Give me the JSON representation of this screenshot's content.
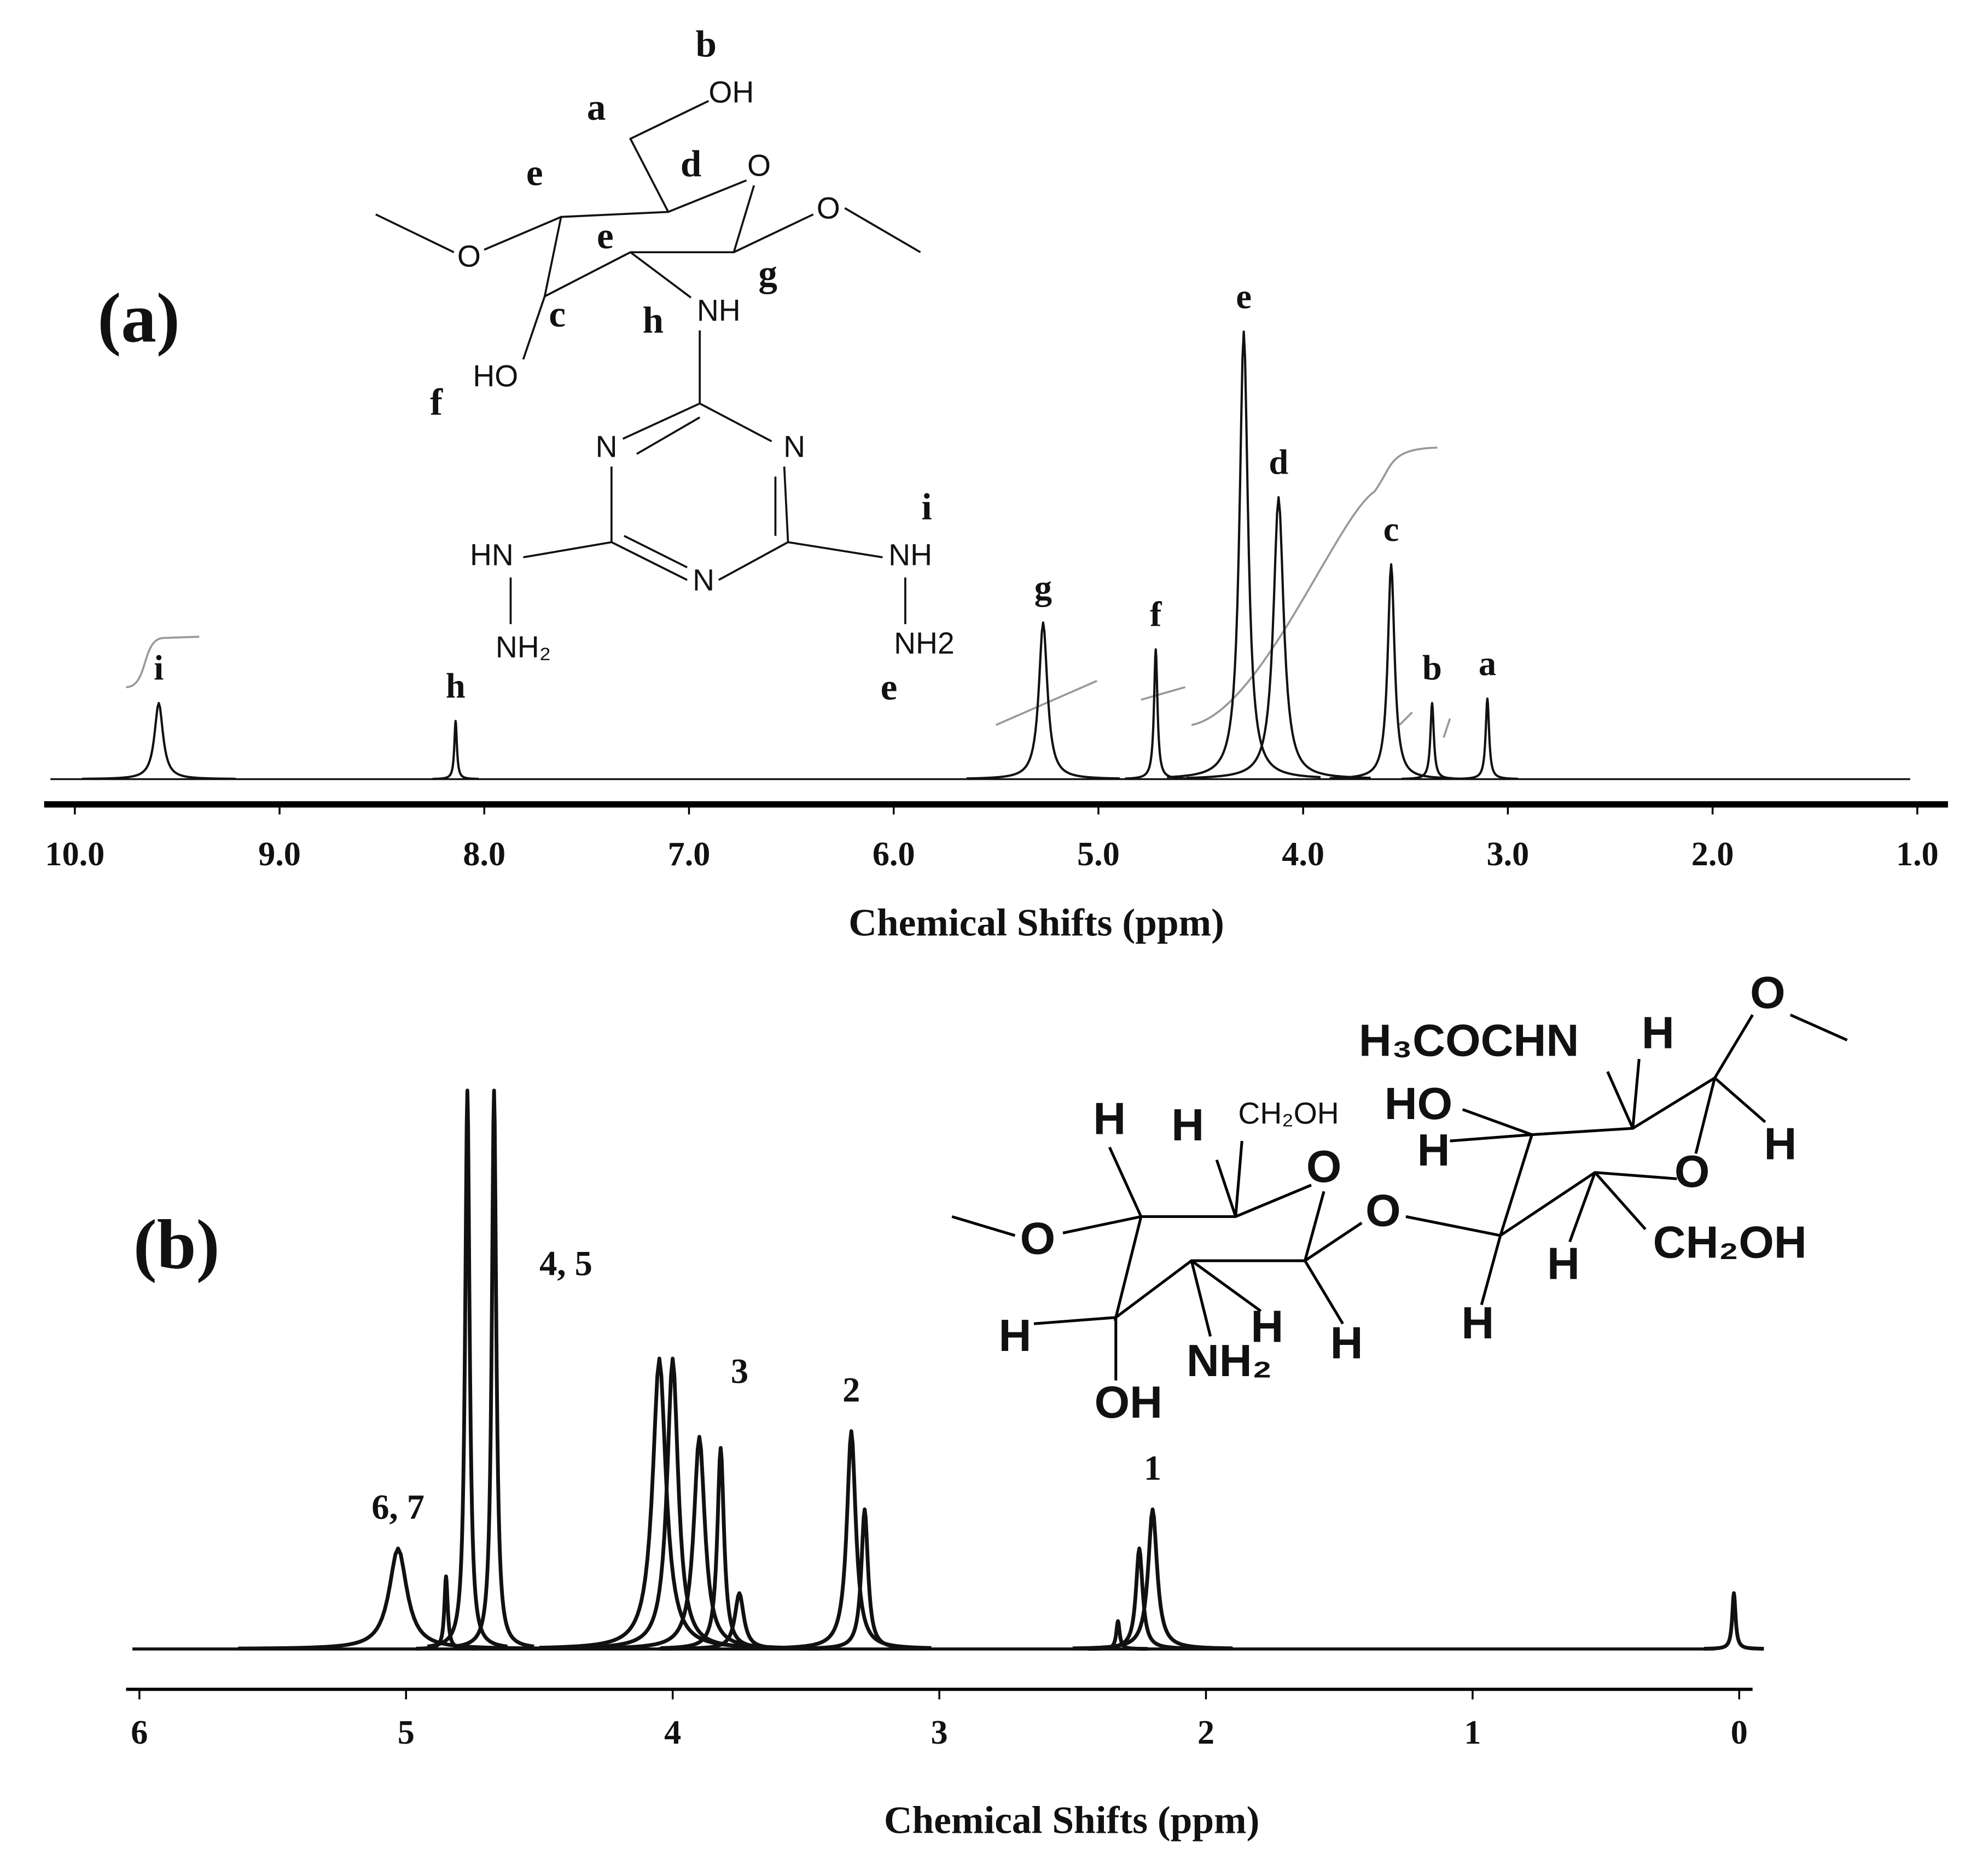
{
  "chart_data": [
    {
      "type": "line",
      "panel_label": "(a)",
      "x_label": "Chemical Shifts (ppm)",
      "xlim": [
        10.15,
        0.85
      ],
      "xticks": [
        {
          "value": 10,
          "label": "10.0"
        },
        {
          "value": 9,
          "label": "9.0"
        },
        {
          "value": 8,
          "label": "8.0"
        },
        {
          "value": 7,
          "label": "7.0"
        },
        {
          "value": 6,
          "label": "6.0"
        },
        {
          "value": 5,
          "label": "5.0"
        },
        {
          "value": 4,
          "label": "4.0"
        },
        {
          "value": 3,
          "label": "3.0"
        },
        {
          "value": 2,
          "label": "2.0"
        },
        {
          "value": 1,
          "label": "1.0"
        }
      ],
      "color": "#111111",
      "x": [
        9.59,
        8.14,
        5.27,
        4.72,
        4.29,
        4.12,
        3.57,
        3.37,
        3.1
      ],
      "values": [
        17,
        13,
        35,
        29,
        100,
        63,
        48,
        17,
        18
      ],
      "linewidths": [
        0.05,
        0.015,
        0.05,
        0.02,
        0.05,
        0.06,
        0.04,
        0.02,
        0.02
      ],
      "labels": [
        "i",
        "h",
        "g",
        "f",
        "e",
        "d",
        "c",
        "b",
        "a"
      ],
      "structure": [
        "b",
        "OH",
        "a",
        "d",
        "O",
        "e",
        "O",
        "O",
        "e",
        "g",
        "c",
        "NH",
        "h",
        "HO",
        "f",
        "N",
        "N",
        "i",
        "HN",
        "NH",
        "N",
        "NH₂",
        "NH2",
        "e"
      ]
    },
    {
      "type": "line",
      "panel_label": "(b)",
      "x_label": "Chemical Shifts (ppm)",
      "xlim": [
        6.05,
        -0.05
      ],
      "xticks": [
        6,
        5,
        4,
        3,
        2,
        1,
        0
      ],
      "color": "#111111",
      "x": [
        5.03,
        4.85,
        4.77,
        4.67,
        4.05,
        4.0,
        3.9,
        3.82,
        3.75,
        3.33,
        3.28,
        2.33,
        2.25,
        2.2,
        0.02
      ],
      "values": [
        18,
        13,
        100,
        100,
        52,
        52,
        38,
        36,
        10,
        39,
        25,
        5,
        18,
        25,
        10
      ],
      "linewidths": [
        0.08,
        0.015,
        0.02,
        0.02,
        0.06,
        0.05,
        0.05,
        0.03,
        0.04,
        0.04,
        0.03,
        0.015,
        0.03,
        0.04,
        0.015
      ],
      "labels": [
        "6, 7",
        null,
        null,
        "4, 5",
        null,
        null,
        null,
        "3",
        null,
        "2",
        null,
        null,
        null,
        "1",
        null
      ],
      "structure": [
        "O",
        "H₃COCHN",
        "H",
        "HO",
        "H",
        "H",
        "CH₂OH",
        "O",
        "H",
        "O",
        "H",
        "O",
        "O",
        "CH₂OH",
        "H",
        "H",
        "NH₂",
        "H",
        "H",
        "H",
        "OH"
      ]
    }
  ]
}
